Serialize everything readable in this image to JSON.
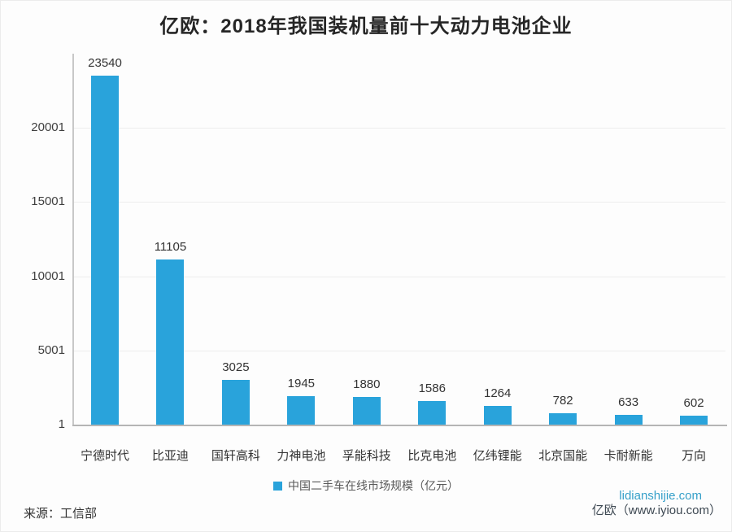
{
  "page": {
    "title": "亿欧：2018年我国装机量前十大动力电池企业"
  },
  "chart_data": {
    "type": "bar",
    "title": "亿欧：2018年我国装机量前十大动力电池企业",
    "categories": [
      "宁德时代",
      "比亚迪",
      "国轩高科",
      "力神电池",
      "孚能科技",
      "比克电池",
      "亿纬锂能",
      "北京国能",
      "卡耐新能",
      "万向"
    ],
    "values": [
      23540,
      11105,
      3025,
      1945,
      1880,
      1586,
      1264,
      782,
      633,
      602
    ],
    "series_name": "中国二手车在线市场规模（亿元）",
    "xlabel": "",
    "ylabel": "",
    "y_ticks": [
      1,
      5001,
      10001,
      15001,
      20001
    ],
    "ylim": [
      1,
      25001
    ],
    "grid": true,
    "data_labels": true,
    "legend_position": "bottom",
    "bar_color": "#29a3db"
  },
  "legend": {
    "label": "中国二手车在线市场规模（亿元）",
    "swatch_color": "#29a3db"
  },
  "footer": {
    "source": "来源：工信部",
    "watermark": "lidianshijie.com",
    "brand": "亿欧（www.iyiou.com）"
  },
  "colors": {
    "bar": "#29a3db",
    "title_text": "#262626",
    "axis_text": "#404040",
    "value_label_text": "#333333",
    "gridline": "#ededed",
    "axis_line": "#c8c8c8",
    "baseline": "#b5b5b5",
    "legend_text": "#595959",
    "watermark": "#36a0c9",
    "brand_text": "#3d4852"
  }
}
